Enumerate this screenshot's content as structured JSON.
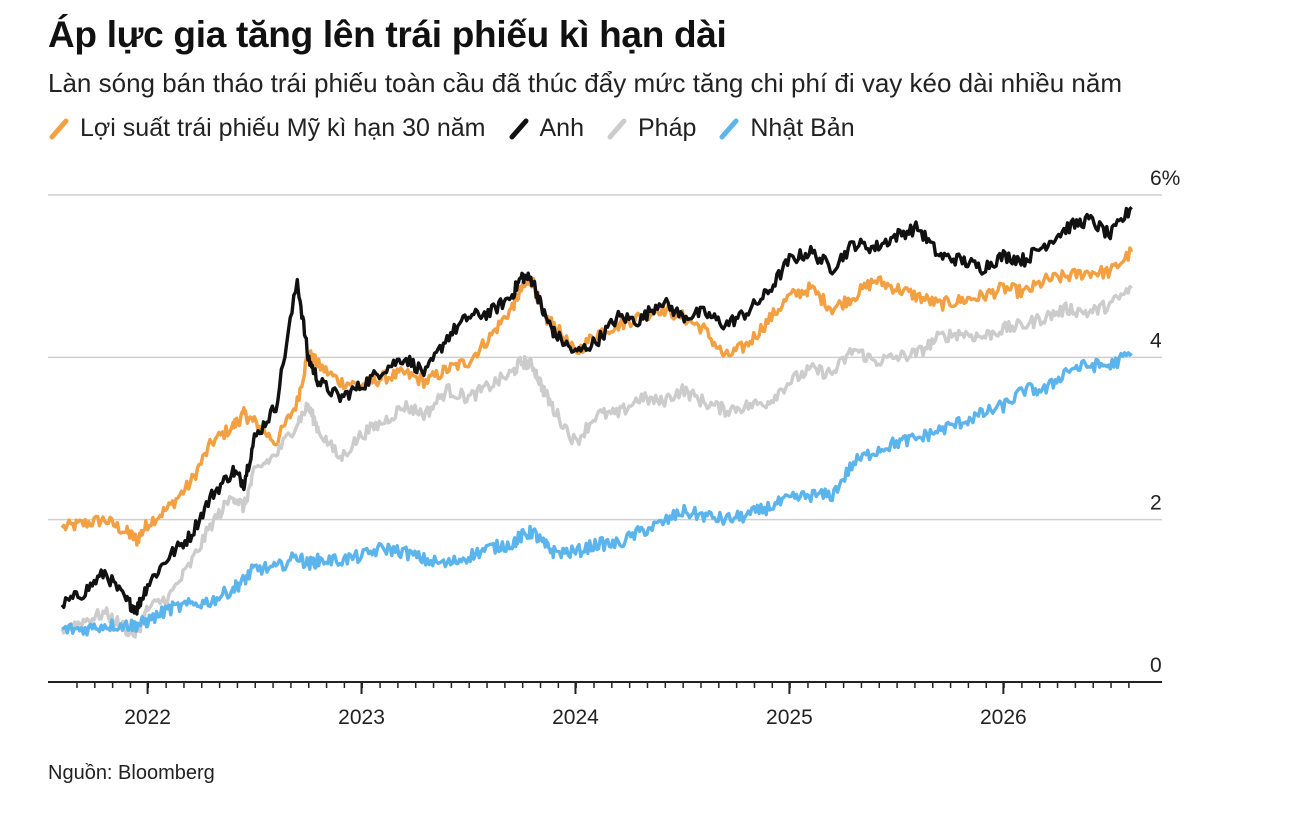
{
  "title": "Áp lực gia tăng lên trái phiếu kì hạn dài",
  "subtitle": "Làn sóng bán tháo trái phiếu toàn cầu đã thúc đẩy mức tăng chi phí đi vay kéo dài nhiều năm",
  "source": "Nguồn: Bloomberg",
  "chart_data": {
    "type": "line",
    "title": "Áp lực gia tăng lên trái phiếu kì hạn dài",
    "subtitle": "Làn sóng bán tháo trái phiếu toàn cầu đã thúc đẩy mức tăng chi phí đi vay kéo dài nhiều năm",
    "xlabel": "",
    "ylabel": "",
    "xlim": [
      2021.6,
      2026.62
    ],
    "ylim": [
      0,
      6
    ],
    "y_ticks": [
      {
        "value": 0,
        "label": "0"
      },
      {
        "value": 2,
        "label": "2"
      },
      {
        "value": 4,
        "label": "4"
      },
      {
        "value": 6,
        "label": "6%"
      }
    ],
    "x_ticks": [
      {
        "value": 2022,
        "label": "2022"
      },
      {
        "value": 2023,
        "label": "2023"
      },
      {
        "value": 2024,
        "label": "2024"
      },
      {
        "value": 2025,
        "label": "2025"
      },
      {
        "value": 2026,
        "label": "2026"
      }
    ],
    "grid": "horizontal",
    "legend_position": "top-left",
    "x": [
      2021.6,
      2021.7,
      2021.8,
      2021.9,
      2021.95,
      2022.0,
      2022.1,
      2022.2,
      2022.3,
      2022.4,
      2022.45,
      2022.5,
      2022.6,
      2022.7,
      2022.75,
      2022.8,
      2022.9,
      2023.0,
      2023.1,
      2023.2,
      2023.3,
      2023.4,
      2023.5,
      2023.6,
      2023.7,
      2023.75,
      2023.8,
      2023.85,
      2023.9,
      2024.0,
      2024.1,
      2024.2,
      2024.3,
      2024.4,
      2024.5,
      2024.6,
      2024.7,
      2024.8,
      2024.9,
      2025.0,
      2025.1,
      2025.2,
      2025.3,
      2025.4,
      2025.5,
      2025.6,
      2025.7,
      2025.8,
      2025.9,
      2026.0,
      2026.1,
      2026.2,
      2026.3,
      2026.4,
      2026.5,
      2026.6
    ],
    "series": [
      {
        "name": "Lợi suất trái phiếu Mỹ kì hạn 30 năm",
        "color": "#f2a041",
        "values": [
          1.9,
          1.95,
          2.0,
          1.85,
          1.75,
          1.95,
          2.15,
          2.45,
          2.95,
          3.15,
          3.3,
          3.2,
          2.95,
          3.45,
          4.05,
          3.9,
          3.7,
          3.65,
          3.75,
          3.8,
          3.7,
          3.85,
          3.95,
          4.25,
          4.6,
          4.85,
          4.95,
          4.5,
          4.4,
          4.05,
          4.3,
          4.4,
          4.5,
          4.6,
          4.5,
          4.35,
          4.0,
          4.15,
          4.45,
          4.75,
          4.85,
          4.6,
          4.75,
          4.95,
          4.85,
          4.75,
          4.65,
          4.7,
          4.75,
          4.85,
          4.8,
          4.95,
          5.0,
          5.05,
          5.05,
          5.3
        ]
      },
      {
        "name": "Anh",
        "color": "#111111",
        "values": [
          0.95,
          1.1,
          1.35,
          1.0,
          0.9,
          1.2,
          1.55,
          1.8,
          2.3,
          2.6,
          2.45,
          3.0,
          3.4,
          4.95,
          4.0,
          3.7,
          3.5,
          3.65,
          3.85,
          4.0,
          3.8,
          4.25,
          4.5,
          4.55,
          4.75,
          5.0,
          4.95,
          4.55,
          4.3,
          4.05,
          4.2,
          4.5,
          4.45,
          4.7,
          4.5,
          4.55,
          4.4,
          4.55,
          4.8,
          5.2,
          5.3,
          5.1,
          5.4,
          5.35,
          5.5,
          5.6,
          5.25,
          5.2,
          5.1,
          5.25,
          5.2,
          5.4,
          5.6,
          5.7,
          5.5,
          5.85
        ]
      },
      {
        "name": "Pháp",
        "color": "#cccccc",
        "values": [
          0.65,
          0.75,
          0.85,
          0.65,
          0.6,
          0.9,
          1.05,
          1.45,
          1.95,
          2.3,
          2.15,
          2.6,
          2.8,
          3.2,
          3.4,
          3.1,
          2.75,
          3.05,
          3.2,
          3.4,
          3.3,
          3.6,
          3.5,
          3.65,
          3.8,
          3.95,
          3.9,
          3.6,
          3.35,
          2.95,
          3.3,
          3.3,
          3.5,
          3.45,
          3.6,
          3.45,
          3.35,
          3.4,
          3.45,
          3.7,
          3.85,
          3.8,
          4.1,
          3.95,
          4.0,
          4.05,
          4.25,
          4.3,
          4.25,
          4.35,
          4.4,
          4.5,
          4.6,
          4.55,
          4.65,
          4.85
        ]
      },
      {
        "name": "Nhật Bản",
        "color": "#5bb4ec",
        "values": [
          0.65,
          0.65,
          0.7,
          0.7,
          0.7,
          0.75,
          0.9,
          0.95,
          1.0,
          1.15,
          1.25,
          1.4,
          1.4,
          1.55,
          1.45,
          1.5,
          1.5,
          1.55,
          1.65,
          1.6,
          1.5,
          1.45,
          1.55,
          1.65,
          1.7,
          1.8,
          1.85,
          1.7,
          1.6,
          1.6,
          1.7,
          1.7,
          1.85,
          1.95,
          2.1,
          2.05,
          2.0,
          2.05,
          2.15,
          2.25,
          2.3,
          2.3,
          2.7,
          2.85,
          2.95,
          3.0,
          3.1,
          3.2,
          3.3,
          3.4,
          3.6,
          3.6,
          3.85,
          3.9,
          3.9,
          4.05
        ]
      }
    ]
  }
}
